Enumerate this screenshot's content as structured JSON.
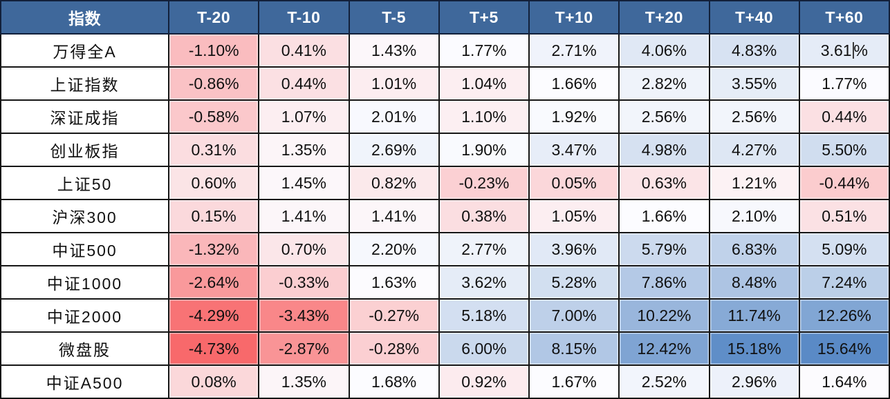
{
  "chart_data": {
    "type": "heatmap",
    "title": "",
    "corner_label": "指数",
    "columns": [
      "T-20",
      "T-10",
      "T-5",
      "T+5",
      "T+10",
      "T+20",
      "T+40",
      "T+60"
    ],
    "rows": [
      "万得全A",
      "上证指数",
      "深证成指",
      "创业板指",
      "上证50",
      "沪深300",
      "中证500",
      "中证1000",
      "中证2000",
      "微盘股",
      "中证A500"
    ],
    "values": [
      [
        -1.1,
        0.41,
        1.43,
        1.77,
        2.71,
        4.06,
        4.83,
        3.61
      ],
      [
        -0.86,
        0.44,
        1.01,
        1.04,
        1.66,
        2.82,
        3.55,
        1.77
      ],
      [
        -0.58,
        1.07,
        2.01,
        1.1,
        1.92,
        2.56,
        2.56,
        0.44
      ],
      [
        0.31,
        1.35,
        2.69,
        1.9,
        3.47,
        4.98,
        4.27,
        5.5
      ],
      [
        0.6,
        1.45,
        0.82,
        -0.23,
        0.05,
        0.63,
        1.21,
        -0.44
      ],
      [
        0.15,
        1.41,
        1.41,
        0.38,
        1.05,
        1.66,
        2.1,
        0.51
      ],
      [
        -1.32,
        0.7,
        2.2,
        2.77,
        3.96,
        5.79,
        6.83,
        5.09
      ],
      [
        -2.64,
        -0.33,
        1.63,
        3.62,
        5.28,
        7.86,
        8.48,
        7.24
      ],
      [
        -4.29,
        -3.43,
        -0.27,
        5.18,
        7.0,
        10.22,
        11.74,
        12.26
      ],
      [
        -4.73,
        -2.87,
        -0.28,
        6.0,
        8.15,
        12.42,
        15.18,
        15.64
      ],
      [
        0.08,
        1.35,
        1.68,
        0.92,
        1.67,
        2.52,
        2.96,
        1.64
      ]
    ],
    "unit": "%",
    "value_decimals": 2,
    "color_scale": {
      "min_color": "#F8696B",
      "mid_color": "#FCFCFF",
      "max_color": "#5A8AC6",
      "midpoint": "median",
      "grid": false,
      "legend": "none"
    },
    "cursor": {
      "row": 0,
      "col": 7,
      "after": "3.61"
    }
  },
  "colors": {
    "header_bg": "#3F689B",
    "header_text": "#FFFFFF",
    "header_border": "#12203A",
    "grid_border": "#161616",
    "row_label_bg": "#FFFFFF",
    "cell_text": "#111111"
  }
}
